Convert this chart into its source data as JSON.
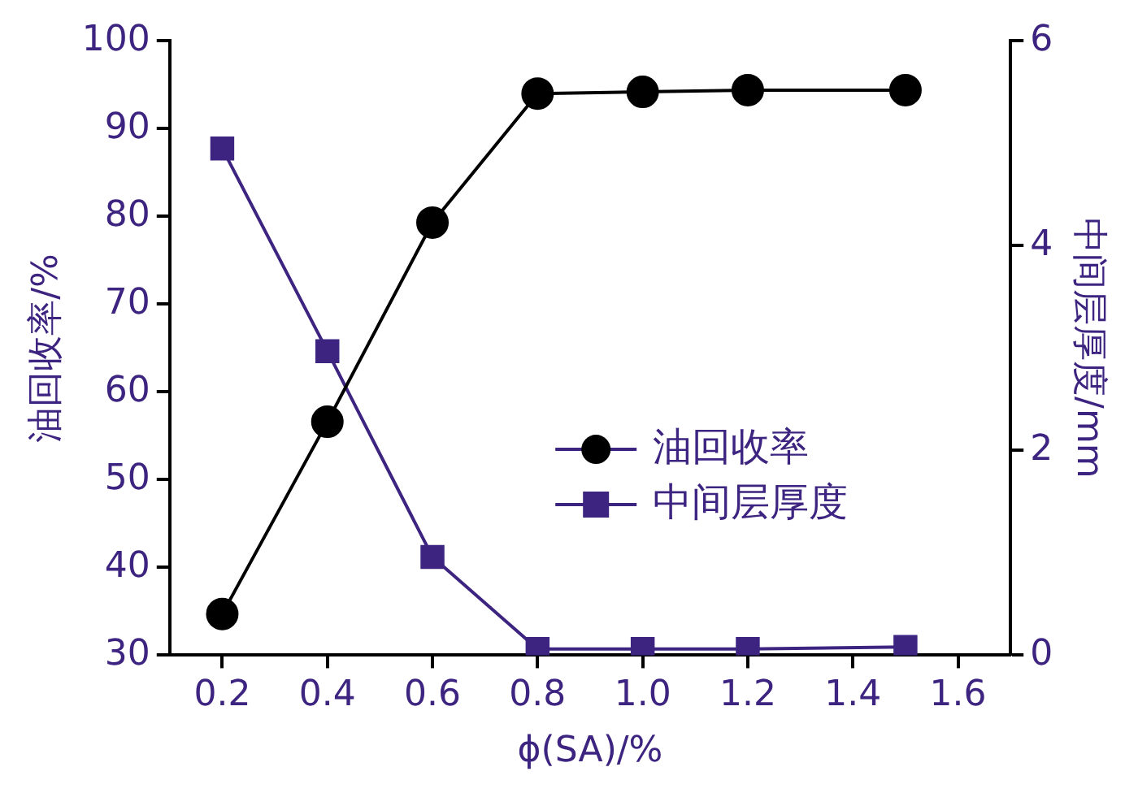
{
  "chart_data": {
    "type": "line",
    "xlabel": "ϕ(SA)/%",
    "ylabel": "油回收率/%",
    "y2label": "中间层厚度/mm",
    "x": [
      0.2,
      0.4,
      0.6,
      0.8,
      1.0,
      1.2,
      1.5
    ],
    "series": [
      {
        "name": "油回收率",
        "color": "#000000",
        "marker": "circle",
        "values": [
          34.7,
          56.6,
          79.3,
          94.0,
          94.2,
          94.4,
          94.4
        ]
      },
      {
        "name": "中间层厚度",
        "color": "#3d2480",
        "marker": "square",
        "axis": "y2",
        "values": [
          4.95,
          2.97,
          0.96,
          0.06,
          0.06,
          0.06,
          0.08
        ]
      }
    ],
    "xlim": [
      0.1,
      1.7
    ],
    "xticks": [
      0.2,
      0.4,
      0.6,
      0.8,
      {
        "value": 1,
        "label": "1.0"
      },
      1.2,
      1.4,
      1.6
    ],
    "ylim": [
      30,
      100
    ],
    "yticks": [
      30,
      40,
      50,
      60,
      70,
      80,
      90,
      100
    ],
    "y2lim": [
      0,
      6
    ],
    "y2ticks": [
      0,
      2,
      4,
      6
    ],
    "grid": false,
    "legend": "right",
    "line_style": "solid"
  }
}
